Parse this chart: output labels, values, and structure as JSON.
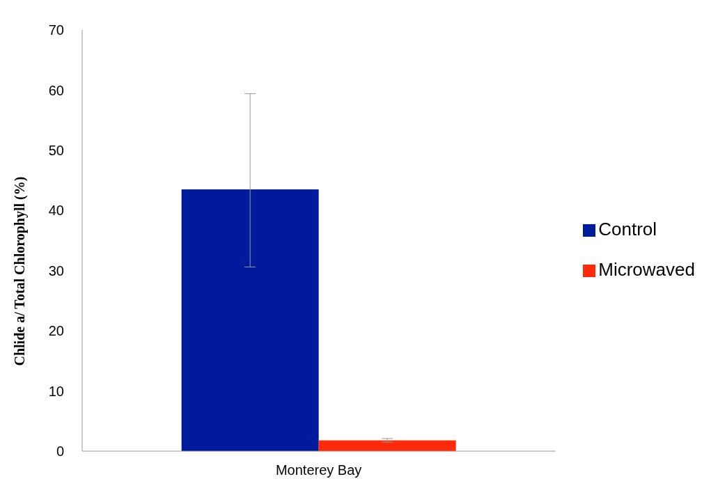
{
  "chart_data": {
    "type": "bar",
    "ylabel": "Chlide a/ Total Chlorophyll (%)",
    "categories": [
      "Monterey Bay"
    ],
    "series": [
      {
        "name": "Control",
        "color": "#001a9c",
        "values": [
          43.5
        ],
        "errors": [
          [
            30.6,
            59.4
          ]
        ]
      },
      {
        "name": "Microwaved",
        "color": "#ff2a0a",
        "values": [
          1.8
        ],
        "errors": [
          [
            1.5,
            2.1
          ]
        ]
      }
    ],
    "ylim": [
      0,
      70
    ],
    "yticks": [
      0,
      10,
      20,
      30,
      40,
      50,
      60,
      70
    ],
    "grid": false,
    "legend": "right"
  }
}
